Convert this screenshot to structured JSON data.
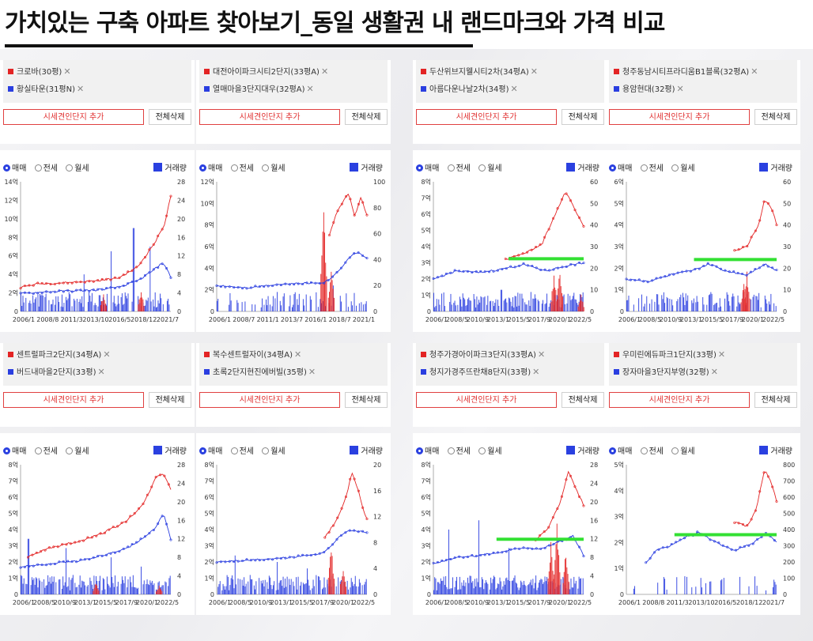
{
  "title": "가치있는 구축 아파트 찾아보기_동일 생활권 내 랜드마크와 가격 비교",
  "ui": {
    "add_label": "시세견인단지 추가",
    "delete_label": "전체삭제",
    "radio_sale": "매매",
    "radio_jeonse": "전세",
    "radio_monthly": "월세",
    "volume_label": "거래량",
    "close_glyph": "✕"
  },
  "colors": {
    "red": "#e32424",
    "blue": "#2a3ee0",
    "green": "#33e033"
  },
  "panels": [
    {
      "legend": [
        "크로바(30평)",
        "황실타운(31평N)"
      ]
    },
    {
      "legend": [
        "대전아이파크시티2단지(33평A)",
        "열매마을3단지대우(32평A)"
      ]
    },
    {
      "legend": [
        "두산위브지웰시티2차(34평A)",
        "아름다운나날2차(34평)"
      ]
    },
    {
      "legend": [
        "청주동남시티프라디움B1블록(32평A)",
        "용암현대(32평)"
      ]
    },
    {
      "legend": [
        "센트럴파크2단지(34평A)",
        "버드내마을2단지(33평)"
      ]
    },
    {
      "legend": [
        "복수센트럴자이(34평A)",
        "초록2단지현진에버빌(35평)"
      ]
    },
    {
      "legend": [
        "청주가경아이파크3단지(33평A)",
        "청지가경주뜨란채8단지(33평)"
      ]
    },
    {
      "legend": [
        "우미린에듀파크1단지(33평)",
        "장자마을3단지부영(32평)"
      ]
    }
  ],
  "chart_data": [
    {
      "type": "line",
      "ylim": [
        0,
        14
      ],
      "y2lim": [
        0,
        28
      ],
      "yticks": [
        "0",
        "2억",
        "4억",
        "6억",
        "8억",
        "10억",
        "12억",
        "14억"
      ],
      "y2ticks": [
        "0",
        "4",
        "8",
        "12",
        "16",
        "20",
        "24",
        "28"
      ],
      "xticks": [
        "2006/1",
        "2008/8",
        "2011/3",
        "2013/10",
        "2016/5",
        "2018/12",
        "2021/7"
      ],
      "series": [
        {
          "color": "red",
          "points": [
            [
              0,
              2.6
            ],
            [
              0.12,
              3.0
            ],
            [
              0.3,
              3.1
            ],
            [
              0.5,
              3.3
            ],
            [
              0.65,
              3.6
            ],
            [
              0.78,
              4.8
            ],
            [
              0.9,
              7.6
            ],
            [
              0.96,
              9.5
            ],
            [
              1.0,
              12.5
            ]
          ]
        },
        {
          "color": "blue",
          "points": [
            [
              0,
              1.9
            ],
            [
              0.15,
              2.1
            ],
            [
              0.3,
              2.2
            ],
            [
              0.5,
              2.3
            ],
            [
              0.65,
              2.6
            ],
            [
              0.78,
              3.3
            ],
            [
              0.88,
              4.4
            ],
            [
              0.95,
              5.3
            ],
            [
              1.0,
              3.7
            ]
          ]
        }
      ],
      "volume": {
        "blue_peaks": [
          [
            0.04,
            10
          ],
          [
            0.42,
            8
          ],
          [
            0.6,
            13
          ],
          [
            0.75,
            18
          ],
          [
            0.86,
            14
          ]
        ],
        "red_peaks": [
          [
            0.55,
            4
          ],
          [
            0.8,
            5
          ]
        ],
        "density": 0.7
      }
    },
    {
      "type": "line",
      "ylim": [
        0,
        12
      ],
      "y2lim": [
        0,
        100
      ],
      "yticks": [
        "0",
        "2억",
        "4억",
        "6억",
        "8억",
        "10억",
        "12억"
      ],
      "y2ticks": [
        "0",
        "20",
        "40",
        "60",
        "80",
        "100"
      ],
      "xticks": [
        "2006/1",
        "2008/7",
        "2011/1",
        "2013/7",
        "2016/1",
        "2018/7",
        "2021/1"
      ],
      "series": [
        {
          "color": "red",
          "points": [
            [
              0.75,
              7.0
            ],
            [
              0.79,
              8.8
            ],
            [
              0.84,
              10.2
            ],
            [
              0.88,
              11.0
            ],
            [
              0.92,
              8.7
            ],
            [
              0.96,
              10.6
            ],
            [
              1.0,
              8.9
            ]
          ]
        },
        {
          "color": "blue",
          "points": [
            [
              0,
              2.4
            ],
            [
              0.2,
              2.2
            ],
            [
              0.4,
              2.5
            ],
            [
              0.6,
              2.6
            ],
            [
              0.72,
              2.7
            ],
            [
              0.78,
              3.3
            ],
            [
              0.86,
              4.6
            ],
            [
              0.92,
              5.5
            ],
            [
              1.0,
              5.0
            ]
          ]
        }
      ],
      "volume": {
        "blue_peaks": [
          [
            0.3,
            10
          ],
          [
            0.77,
            20
          ]
        ],
        "red_peaks": [
          [
            0.71,
            88
          ],
          [
            0.76,
            32
          ]
        ],
        "density": 0.4
      }
    },
    {
      "type": "line",
      "ylim": [
        0,
        8
      ],
      "y2lim": [
        0,
        60
      ],
      "yticks": [
        "0",
        "1억",
        "2억",
        "3억",
        "4억",
        "5억",
        "6억",
        "7억",
        "8억"
      ],
      "y2ticks": [
        "0",
        "10",
        "20",
        "30",
        "40",
        "50",
        "60"
      ],
      "xticks": [
        "2006/1",
        "2008/5",
        "2010/9",
        "2013/1",
        "2015/5",
        "2017/9",
        "2020/1",
        "2022/5"
      ],
      "series": [
        {
          "color": "red",
          "points": [
            [
              0.48,
              3.2
            ],
            [
              0.6,
              3.6
            ],
            [
              0.72,
              4.1
            ],
            [
              0.82,
              6.2
            ],
            [
              0.88,
              7.4
            ],
            [
              0.94,
              6.3
            ],
            [
              1.0,
              5.2
            ]
          ]
        },
        {
          "color": "blue",
          "points": [
            [
              0,
              2.0
            ],
            [
              0.15,
              2.5
            ],
            [
              0.3,
              2.4
            ],
            [
              0.45,
              2.6
            ],
            [
              0.6,
              2.9
            ],
            [
              0.75,
              2.5
            ],
            [
              0.88,
              2.8
            ],
            [
              1.0,
              3.0
            ]
          ]
        }
      ],
      "volume": {
        "blue_peaks": [
          [
            0.1,
            8
          ],
          [
            0.45,
            10
          ],
          [
            0.65,
            9
          ]
        ],
        "red_peaks": [
          [
            0.8,
            18
          ],
          [
            0.84,
            20
          ],
          [
            0.98,
            8
          ]
        ],
        "density": 0.8
      },
      "guide": [
        0.5,
        1.0,
        3.25
      ]
    },
    {
      "type": "line",
      "ylim": [
        0,
        6
      ],
      "y2lim": [
        0,
        60
      ],
      "yticks": [
        "0",
        "1억",
        "2억",
        "3억",
        "4억",
        "5억",
        "6억"
      ],
      "y2ticks": [
        "0",
        "10",
        "20",
        "30",
        "40",
        "50",
        "60"
      ],
      "xticks": [
        "2006/1",
        "2008/5",
        "2010/9",
        "2013/1",
        "2015/5",
        "2017/9",
        "2020/1",
        "2022/5"
      ],
      "series": [
        {
          "color": "red",
          "points": [
            [
              0.72,
              2.8
            ],
            [
              0.8,
              3.0
            ],
            [
              0.88,
              4.0
            ],
            [
              0.92,
              5.2
            ],
            [
              0.98,
              4.6
            ],
            [
              1.0,
              4.0
            ]
          ]
        },
        {
          "color": "blue",
          "points": [
            [
              0,
              1.5
            ],
            [
              0.15,
              1.4
            ],
            [
              0.3,
              1.7
            ],
            [
              0.45,
              1.9
            ],
            [
              0.55,
              2.2
            ],
            [
              0.65,
              1.9
            ],
            [
              0.8,
              1.7
            ],
            [
              0.92,
              2.2
            ],
            [
              1.0,
              1.9
            ]
          ]
        }
      ],
      "volume": {
        "blue_peaks": [
          [
            0.2,
            8
          ],
          [
            0.45,
            6
          ]
        ],
        "red_peaks": [
          [
            0.78,
            14
          ],
          [
            0.8,
            20
          ]
        ],
        "density": 0.6
      },
      "guide": [
        0.45,
        1.0,
        2.4
      ]
    },
    {
      "type": "line",
      "ylim": [
        0,
        8
      ],
      "y2lim": [
        0,
        28
      ],
      "yticks": [
        "0",
        "1억",
        "2억",
        "3억",
        "4억",
        "5억",
        "6억",
        "7억",
        "8억"
      ],
      "y2ticks": [
        "0",
        "4",
        "8",
        "12",
        "16",
        "20",
        "24",
        "28"
      ],
      "xticks": [
        "2006/1",
        "2008/5",
        "2010/9",
        "2013/1",
        "2015/5",
        "2017/9",
        "2020/1",
        "2022/5"
      ],
      "series": [
        {
          "color": "red",
          "points": [
            [
              0.05,
              2.3
            ],
            [
              0.2,
              2.9
            ],
            [
              0.4,
              3.3
            ],
            [
              0.55,
              3.8
            ],
            [
              0.7,
              4.5
            ],
            [
              0.82,
              5.6
            ],
            [
              0.9,
              7.2
            ],
            [
              0.95,
              7.5
            ],
            [
              1.0,
              6.5
            ]
          ]
        },
        {
          "color": "blue",
          "points": [
            [
              0,
              1.7
            ],
            [
              0.2,
              1.9
            ],
            [
              0.4,
              2.1
            ],
            [
              0.55,
              2.4
            ],
            [
              0.7,
              2.8
            ],
            [
              0.82,
              3.5
            ],
            [
              0.9,
              4.1
            ],
            [
              0.95,
              5.0
            ],
            [
              1.0,
              3.4
            ]
          ]
        }
      ],
      "volume": {
        "blue_peaks": [
          [
            0.05,
            12
          ],
          [
            0.3,
            10
          ],
          [
            0.6,
            8
          ],
          [
            0.8,
            6
          ]
        ],
        "red_peaks": [
          [
            0.5,
            3
          ],
          [
            0.92,
            2
          ]
        ],
        "density": 0.8
      }
    },
    {
      "type": "line",
      "ylim": [
        0,
        8
      ],
      "y2lim": [
        0,
        20
      ],
      "yticks": [
        "0",
        "1억",
        "2억",
        "3억",
        "4억",
        "5억",
        "6억",
        "7억",
        "8억"
      ],
      "y2ticks": [
        "0",
        "4",
        "8",
        "12",
        "16",
        "20"
      ],
      "xticks": [
        "2006/1",
        "2008/5",
        "2010/9",
        "2013/1",
        "2015/5",
        "2017/9",
        "2020/1",
        "2022/5"
      ],
      "series": [
        {
          "color": "red",
          "points": [
            [
              0.72,
              3.5
            ],
            [
              0.8,
              4.6
            ],
            [
              0.86,
              6.0
            ],
            [
              0.9,
              7.5
            ],
            [
              0.94,
              6.5
            ],
            [
              0.97,
              5.4
            ],
            [
              1.0,
              4.6
            ]
          ]
        },
        {
          "color": "blue",
          "points": [
            [
              0,
              2.0
            ],
            [
              0.2,
              2.1
            ],
            [
              0.4,
              2.2
            ],
            [
              0.6,
              2.4
            ],
            [
              0.72,
              2.6
            ],
            [
              0.8,
              3.4
            ],
            [
              0.88,
              4.0
            ],
            [
              1.0,
              3.8
            ]
          ]
        }
      ],
      "volume": {
        "blue_peaks": [
          [
            0.12,
            6
          ],
          [
            0.4,
            5
          ],
          [
            0.6,
            4
          ]
        ],
        "red_peaks": [
          [
            0.76,
            8
          ],
          [
            0.84,
            5
          ]
        ],
        "density": 0.7
      }
    },
    {
      "type": "line",
      "ylim": [
        0,
        8
      ],
      "y2lim": [
        0,
        28
      ],
      "yticks": [
        "0",
        "1억",
        "2억",
        "3억",
        "4억",
        "5억",
        "6억",
        "7억",
        "8억"
      ],
      "y2ticks": [
        "0",
        "4",
        "8",
        "12",
        "16",
        "20",
        "24",
        "28"
      ],
      "xticks": [
        "2006/1",
        "2008/5",
        "2010/9",
        "2013/1",
        "2015/5",
        "2017/9",
        "2020/1",
        "2022/5"
      ],
      "series": [
        {
          "color": "red",
          "points": [
            [
              0.68,
              3.4
            ],
            [
              0.76,
              4.0
            ],
            [
              0.84,
              5.6
            ],
            [
              0.9,
              7.6
            ],
            [
              0.95,
              6.5
            ],
            [
              1.0,
              5.5
            ]
          ]
        },
        {
          "color": "blue",
          "points": [
            [
              0,
              1.9
            ],
            [
              0.15,
              2.3
            ],
            [
              0.3,
              2.4
            ],
            [
              0.45,
              2.6
            ],
            [
              0.6,
              2.9
            ],
            [
              0.72,
              2.8
            ],
            [
              0.85,
              3.3
            ],
            [
              0.93,
              3.6
            ],
            [
              1.0,
              2.4
            ]
          ]
        }
      ],
      "volume": {
        "blue_peaks": [
          [
            0.1,
            14
          ],
          [
            0.3,
            16
          ],
          [
            0.5,
            10
          ],
          [
            0.62,
            12
          ]
        ],
        "red_peaks": [
          [
            0.78,
            12
          ],
          [
            0.82,
            16
          ],
          [
            0.88,
            10
          ]
        ],
        "density": 0.9
      },
      "guide": [
        0.42,
        1.0,
        3.4
      ]
    },
    {
      "type": "line",
      "ylim": [
        0,
        5
      ],
      "y2lim": [
        0,
        800
      ],
      "yticks": [
        "0",
        "1억",
        "2억",
        "3억",
        "4억",
        "5억"
      ],
      "y2ticks": [
        "0",
        "100",
        "200",
        "300",
        "400",
        "500",
        "600",
        "700",
        "800"
      ],
      "xticks": [
        "2006/1",
        "2008/8",
        "2011/3",
        "2013/10",
        "2016/5",
        "2018/12",
        "2021/7"
      ],
      "series": [
        {
          "color": "red",
          "points": [
            [
              0.72,
              2.8
            ],
            [
              0.8,
              2.6
            ],
            [
              0.86,
              3.2
            ],
            [
              0.92,
              4.8
            ],
            [
              0.96,
              4.4
            ],
            [
              1.0,
              3.6
            ]
          ]
        },
        {
          "color": "blue",
          "points": [
            [
              0.13,
              1.2
            ],
            [
              0.2,
              1.7
            ],
            [
              0.3,
              1.9
            ],
            [
              0.4,
              2.2
            ],
            [
              0.48,
              2.4
            ],
            [
              0.6,
              2.0
            ],
            [
              0.72,
              1.7
            ],
            [
              0.85,
              2.0
            ],
            [
              0.93,
              2.4
            ],
            [
              1.0,
              2.0
            ]
          ]
        }
      ],
      "volume": {
        "blue_peaks": [
          [
            0.14,
            240
          ]
        ],
        "red_peaks": [],
        "density": 0.2
      },
      "guide": [
        0.32,
        1.0,
        2.3
      ]
    }
  ]
}
